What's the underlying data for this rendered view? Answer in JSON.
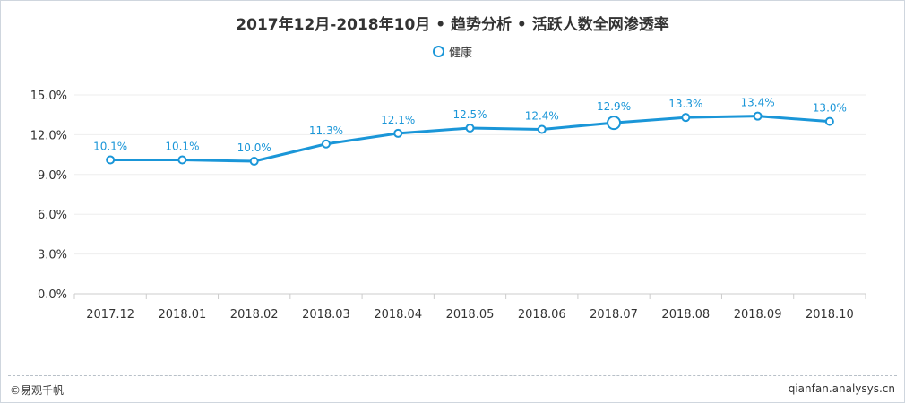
{
  "title": "2017年12月-2018年10月 • 趋势分析 • 活跃人数全网渗透率",
  "footer": {
    "left": "©易观千帆",
    "right": "qianfan.analysys.cn"
  },
  "colors": {
    "series": "#1a96d8",
    "grid": "#eeeeee",
    "axis": "#cccccc",
    "text": "#333333"
  },
  "chart_data": {
    "type": "line",
    "title": "2017年12月-2018年10月 • 趋势分析 • 活跃人数全网渗透率",
    "categories": [
      "2017.12",
      "2018.01",
      "2018.02",
      "2018.03",
      "2018.04",
      "2018.05",
      "2018.06",
      "2018.07",
      "2018.08",
      "2018.09",
      "2018.10"
    ],
    "series": [
      {
        "name": "健康",
        "values": [
          10.1,
          10.1,
          10.0,
          11.3,
          12.1,
          12.5,
          12.4,
          12.9,
          13.3,
          13.4,
          13.0
        ],
        "labels": [
          "10.1%",
          "10.1%",
          "10.0%",
          "11.3%",
          "12.1%",
          "12.5%",
          "12.4%",
          "12.9%",
          "13.3%",
          "13.4%",
          "13.0%"
        ]
      }
    ],
    "yticks": [
      "0.0%",
      "3.0%",
      "6.0%",
      "9.0%",
      "12.0%",
      "15.0%"
    ],
    "ylim": [
      0,
      15
    ],
    "ytick_step": 3,
    "highlighted_category": "2018.07",
    "grid": true,
    "legend": "top-center"
  }
}
